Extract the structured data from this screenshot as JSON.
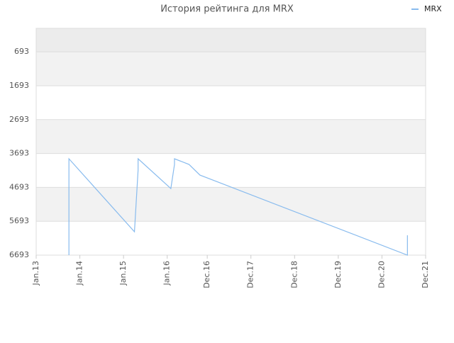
{
  "chart_data": {
    "type": "line",
    "title": "История рейтинга для MRX",
    "x": [
      "2013-10",
      "2013-10",
      "2015-04",
      "2015-05",
      "2015-05",
      "2016-02",
      "2016-03",
      "2016-03",
      "2016-07",
      "2016-10",
      "2021-07",
      "2021-07"
    ],
    "series": [
      {
        "name": "MRX",
        "color": "#88bbee",
        "values": [
          6693,
          3849,
          6004,
          4184,
          3849,
          4728,
          4017,
          3849,
          4017,
          4331,
          6693,
          6108
        ]
      }
    ],
    "ylim": [
      0,
      6693
    ],
    "y_inverted": true,
    "yticks": [
      693,
      1693,
      2693,
      3693,
      4693,
      5693,
      6693
    ],
    "xticks": [
      {
        "value": "2013-01",
        "label": "Jan.13"
      },
      {
        "value": "2014-01",
        "label": "Jan.14"
      },
      {
        "value": "2015-01",
        "label": "Jan.15"
      },
      {
        "value": "2016-01",
        "label": "Jan.16"
      },
      {
        "value": "2016-12",
        "label": "Dec.16"
      },
      {
        "value": "2017-12",
        "label": "Dec.17"
      },
      {
        "value": "2018-12",
        "label": "Dec.18"
      },
      {
        "value": "2019-12",
        "label": "Dec.19"
      },
      {
        "value": "2020-12",
        "label": "Dec.20"
      },
      {
        "value": "2021-12",
        "label": "Dec.21"
      }
    ],
    "grid": true,
    "legend": "top-right"
  }
}
